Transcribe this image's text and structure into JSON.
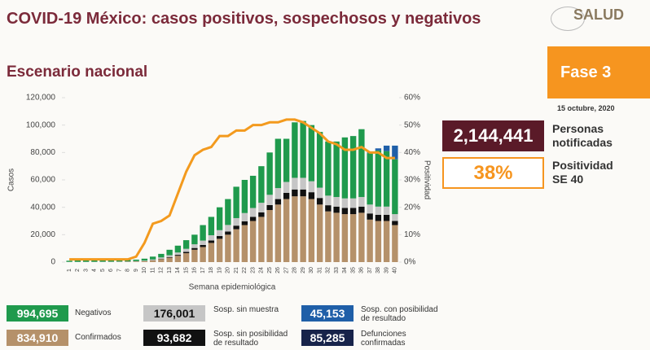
{
  "header": {
    "title": "COVID-19 México: casos positivos, sospechosos y negativos",
    "subtitle": "Escenario nacional",
    "logo": "SALUD",
    "phase": "Fase 3",
    "date": "15 octubre, 2020"
  },
  "stats": [
    {
      "value": "2,144,441",
      "label": "Personas notificadas"
    },
    {
      "value": "38%",
      "label": "Positividad SE 40"
    }
  ],
  "chart_data": {
    "type": "bar",
    "stacked": true,
    "xlabel": "Semana epidemiológica",
    "ylabel": "Casos",
    "y2label": "Positividad",
    "categories": [
      "1",
      "2",
      "3",
      "4",
      "5",
      "6",
      "7",
      "8",
      "9",
      "10",
      "11",
      "12",
      "13",
      "14",
      "15",
      "16",
      "17",
      "18",
      "19",
      "20",
      "21",
      "22",
      "23",
      "24",
      "25",
      "26",
      "27",
      "28",
      "29",
      "30",
      "31",
      "32",
      "33",
      "34",
      "35",
      "36",
      "37",
      "38",
      "39",
      "40"
    ],
    "ylim": [
      0,
      120000
    ],
    "yticks": [
      0,
      {
        "value": 20000,
        "label": "20,000"
      },
      {
        "value": 40000,
        "label": "40,000"
      },
      {
        "value": 60000,
        "label": "60,000"
      },
      {
        "value": 80000,
        "label": "80,000"
      },
      {
        "value": 100000,
        "label": "100,000"
      },
      {
        "value": 120000,
        "label": "120,000"
      }
    ],
    "y2lim": [
      0,
      60
    ],
    "y2ticks": [
      {
        "value": 0,
        "label": "0%"
      },
      {
        "value": 10,
        "label": "10%"
      },
      {
        "value": 20,
        "label": "20%"
      },
      {
        "value": 30,
        "label": "30%"
      },
      {
        "value": 40,
        "label": "40%"
      },
      {
        "value": 50,
        "label": "50%"
      },
      {
        "value": 60,
        "label": "60%"
      }
    ],
    "series": [
      {
        "name": "Confirmados",
        "color": "#b5916a",
        "total": "834,910",
        "values": [
          50,
          60,
          80,
          100,
          120,
          150,
          200,
          300,
          400,
          600,
          1200,
          2200,
          3200,
          4600,
          6500,
          9000,
          11000,
          14000,
          17000,
          20000,
          24000,
          27000,
          30000,
          33000,
          38000,
          42000,
          46000,
          48000,
          48000,
          46000,
          42000,
          37000,
          36000,
          35000,
          35000,
          36000,
          31000,
          30000,
          30000,
          27000
        ]
      },
      {
        "name": "Sosp. sin posibilidad de resultado",
        "color": "#111111",
        "total": "93,682",
        "values": [
          10,
          10,
          10,
          10,
          10,
          20,
          20,
          30,
          40,
          80,
          150,
          300,
          500,
          700,
          1000,
          1300,
          1500,
          1800,
          2000,
          2300,
          2600,
          2800,
          3000,
          3300,
          3600,
          4000,
          4500,
          5000,
          5000,
          5000,
          4800,
          4500,
          4500,
          4500,
          4500,
          4500,
          4500,
          4500,
          4500,
          3000
        ]
      },
      {
        "name": "Sosp. sin muestra",
        "color": "#c6c6c6",
        "total": "176,001",
        "values": [
          100,
          100,
          100,
          100,
          150,
          150,
          200,
          200,
          300,
          400,
          600,
          900,
          1300,
          1700,
          2200,
          2700,
          3200,
          3800,
          4300,
          4800,
          5500,
          6000,
          6500,
          7000,
          7500,
          8000,
          8000,
          8500,
          8500,
          8000,
          7500,
          7000,
          7000,
          7000,
          7000,
          7000,
          6500,
          6000,
          6000,
          5000
        ]
      },
      {
        "name": "Negativos",
        "color": "#1f9a4d",
        "total": "994,695",
        "values": [
          840,
          1030,
          1110,
          1190,
          1220,
          1180,
          1180,
          1070,
          1060,
          1420,
          2050,
          2600,
          4000,
          5000,
          6300,
          7000,
          11300,
          13400,
          16700,
          18900,
          22900,
          24200,
          23500,
          26700,
          30900,
          36000,
          31500,
          40500,
          41500,
          41000,
          40700,
          39500,
          40500,
          44500,
          45500,
          49500,
          37500,
          41000,
          40500,
          40000
        ]
      },
      {
        "name": "Sosp. con posibilidad de resultado",
        "color": "#1f5fa8",
        "total": "45,153",
        "values": [
          0,
          0,
          0,
          0,
          0,
          0,
          0,
          0,
          0,
          0,
          0,
          0,
          0,
          0,
          0,
          0,
          0,
          0,
          0,
          0,
          0,
          0,
          0,
          0,
          0,
          0,
          0,
          0,
          0,
          0,
          0,
          0,
          0,
          0,
          0,
          0,
          500,
          1500,
          4000,
          10000
        ]
      },
      {
        "type": "line",
        "axis": "y2",
        "color": "#f39a1e",
        "values": [
          1,
          1,
          1,
          1,
          1,
          1,
          1,
          1,
          2,
          7,
          14,
          15,
          17,
          25,
          33,
          39,
          41,
          42,
          46,
          46,
          48,
          48,
          50,
          50,
          51,
          51,
          52,
          52,
          51,
          49,
          47,
          44,
          43,
          41,
          41,
          42,
          40,
          40,
          38,
          38
        ]
      }
    ],
    "legend_extra": {
      "name": "Defunciones confirmadas",
      "total": "85,285",
      "color": "#17234a"
    }
  }
}
